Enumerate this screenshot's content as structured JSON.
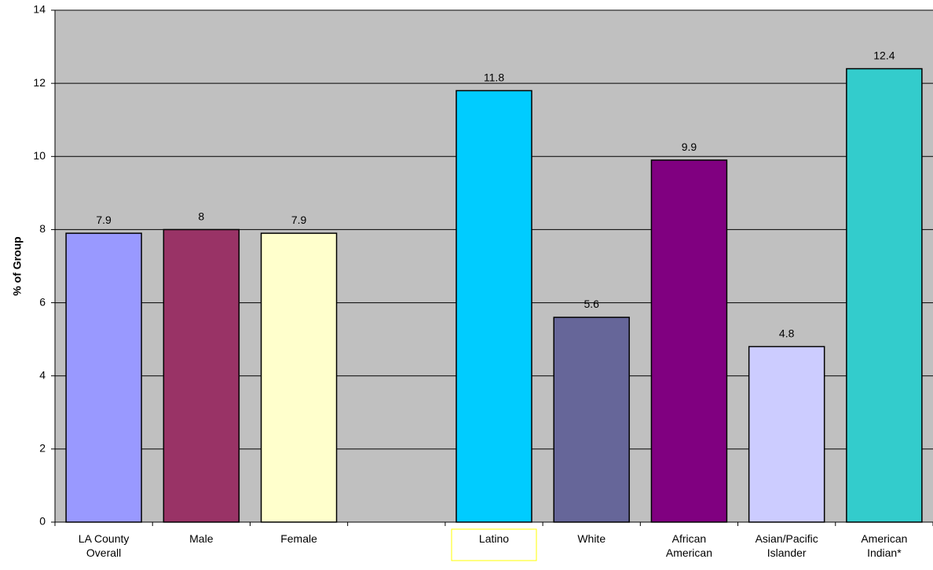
{
  "chart_data": {
    "type": "bar",
    "title": "",
    "xlabel": "",
    "ylabel": "% of Group",
    "ylim": [
      0,
      14
    ],
    "yticks": [
      0,
      2,
      4,
      6,
      8,
      10,
      12,
      14
    ],
    "grid": true,
    "legend": "none",
    "plot_background": "#c0c0c0",
    "highlighted_category": "Latino",
    "highlight_color": "#ffff00",
    "categories": [
      {
        "lines": [
          "LA County",
          "Overall"
        ]
      },
      {
        "lines": [
          "Male"
        ]
      },
      {
        "lines": [
          "Female"
        ]
      },
      {
        "lines": []
      },
      {
        "lines": [
          "Latino"
        ]
      },
      {
        "lines": [
          "White"
        ]
      },
      {
        "lines": [
          "African",
          "American"
        ]
      },
      {
        "lines": [
          "Asian/Pacific",
          "Islander"
        ]
      },
      {
        "lines": [
          "American",
          "Indian*"
        ]
      }
    ],
    "values": [
      7.9,
      8,
      7.9,
      null,
      11.8,
      5.6,
      9.9,
      4.8,
      12.4
    ],
    "data_labels": [
      "7.9",
      "8",
      "7.9",
      "",
      "11.8",
      "5.6",
      "9.9",
      "4.8",
      "12.4"
    ],
    "colors": [
      "#9999ff",
      "#993366",
      "#ffffcc",
      "",
      "#00ccff",
      "#666699",
      "#800080",
      "#ccccff",
      "#33cccc"
    ]
  }
}
